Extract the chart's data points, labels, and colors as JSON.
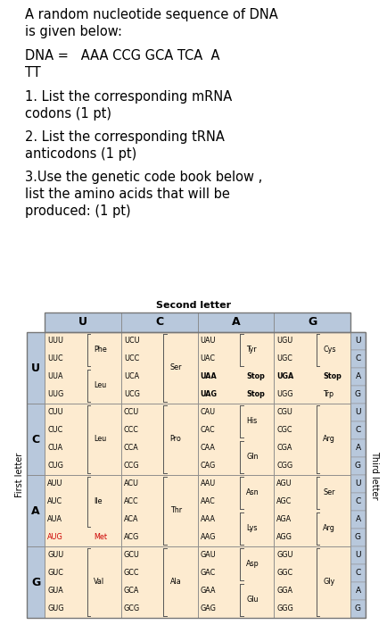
{
  "title_text": "A random nucleotide sequence of DNA\nis given below:",
  "dna_text": "DNA =   AAA CCG GCA TCA  A\nTT",
  "q1": "1. List the corresponding mRNA\ncodons (1 pt)",
  "q2": "2. List the corresponding tRNA\nanticodons (1 pt)",
  "q3": "3.Use the genetic code book below ,\nlist the amino acids that will be\nproduced: (1 pt)",
  "table_title": "Second letter",
  "col_headers": [
    "U",
    "C",
    "A",
    "G"
  ],
  "row_headers": [
    "U",
    "C",
    "A",
    "G"
  ],
  "cell_bg": "#FDEBD0",
  "header_bg": "#B8C8DC",
  "aug_color": "#CC0000",
  "normal_color": "#000000",
  "cells": {
    "UU": {
      "codons": [
        "UUU",
        "UUC",
        "UUA",
        "UUG"
      ],
      "groups": [
        {
          "label": "Phe",
          "rows": [
            0,
            1
          ]
        },
        {
          "label": "Leu",
          "rows": [
            2,
            3
          ]
        }
      ]
    },
    "UC": {
      "codons": [
        "UCU",
        "UCC",
        "UCA",
        "UCG"
      ],
      "groups": [
        {
          "label": "Ser",
          "rows": [
            0,
            1,
            2,
            3
          ]
        }
      ]
    },
    "UA": {
      "codons": [
        "UAU",
        "UAC",
        "UAA",
        "UAG"
      ],
      "groups": [
        {
          "label": "Tyr",
          "rows": [
            0,
            1
          ]
        },
        {
          "label": "Stop",
          "rows": [
            2
          ],
          "bold": true
        },
        {
          "label": "Stop",
          "rows": [
            3
          ],
          "bold": true
        }
      ]
    },
    "UG": {
      "codons": [
        "UGU",
        "UGC",
        "UGA",
        "UGG"
      ],
      "groups": [
        {
          "label": "Cys",
          "rows": [
            0,
            1
          ]
        },
        {
          "label": "Stop",
          "rows": [
            2
          ],
          "bold": true
        },
        {
          "label": "Trp",
          "rows": [
            3
          ]
        }
      ]
    },
    "CU": {
      "codons": [
        "CUU",
        "CUC",
        "CUA",
        "CUG"
      ],
      "groups": [
        {
          "label": "Leu",
          "rows": [
            0,
            1,
            2,
            3
          ]
        }
      ]
    },
    "CC": {
      "codons": [
        "CCU",
        "CCC",
        "CCA",
        "CCG"
      ],
      "groups": [
        {
          "label": "Pro",
          "rows": [
            0,
            1,
            2,
            3
          ]
        }
      ]
    },
    "CA": {
      "codons": [
        "CAU",
        "CAC",
        "CAA",
        "CAG"
      ],
      "groups": [
        {
          "label": "His",
          "rows": [
            0,
            1
          ]
        },
        {
          "label": "Gln",
          "rows": [
            2,
            3
          ]
        }
      ]
    },
    "CG": {
      "codons": [
        "CGU",
        "CGC",
        "CGA",
        "CGG"
      ],
      "groups": [
        {
          "label": "Arg",
          "rows": [
            0,
            1,
            2,
            3
          ]
        }
      ]
    },
    "AU": {
      "codons": [
        "AUU",
        "AUC",
        "AUA",
        "AUG"
      ],
      "groups": [
        {
          "label": "Ile",
          "rows": [
            0,
            1,
            2
          ]
        },
        {
          "label": "Met",
          "rows": [
            3
          ],
          "red": true
        }
      ]
    },
    "AC": {
      "codons": [
        "ACU",
        "ACC",
        "ACA",
        "ACG"
      ],
      "groups": [
        {
          "label": "Thr",
          "rows": [
            0,
            1,
            2,
            3
          ]
        }
      ]
    },
    "AA": {
      "codons": [
        "AAU",
        "AAC",
        "AAA",
        "AAG"
      ],
      "groups": [
        {
          "label": "Asn",
          "rows": [
            0,
            1
          ]
        },
        {
          "label": "Lys",
          "rows": [
            2,
            3
          ]
        }
      ]
    },
    "AG": {
      "codons": [
        "AGU",
        "AGC",
        "AGA",
        "AGG"
      ],
      "groups": [
        {
          "label": "Ser",
          "rows": [
            0,
            1
          ]
        },
        {
          "label": "Arg",
          "rows": [
            2,
            3
          ]
        }
      ]
    },
    "GU": {
      "codons": [
        "GUU",
        "GUC",
        "GUA",
        "GUG"
      ],
      "groups": [
        {
          "label": "Val",
          "rows": [
            0,
            1,
            2,
            3
          ]
        }
      ]
    },
    "GC": {
      "codons": [
        "GCU",
        "GCC",
        "GCA",
        "GCG"
      ],
      "groups": [
        {
          "label": "Ala",
          "rows": [
            0,
            1,
            2,
            3
          ]
        }
      ]
    },
    "GA": {
      "codons": [
        "GAU",
        "GAC",
        "GAA",
        "GAG"
      ],
      "groups": [
        {
          "label": "Asp",
          "rows": [
            0,
            1
          ]
        },
        {
          "label": "Glu",
          "rows": [
            2,
            3
          ]
        }
      ]
    },
    "GG": {
      "codons": [
        "GGU",
        "GGC",
        "GGA",
        "GGG"
      ],
      "groups": [
        {
          "label": "Gly",
          "rows": [
            0,
            1,
            2,
            3
          ]
        }
      ]
    }
  }
}
